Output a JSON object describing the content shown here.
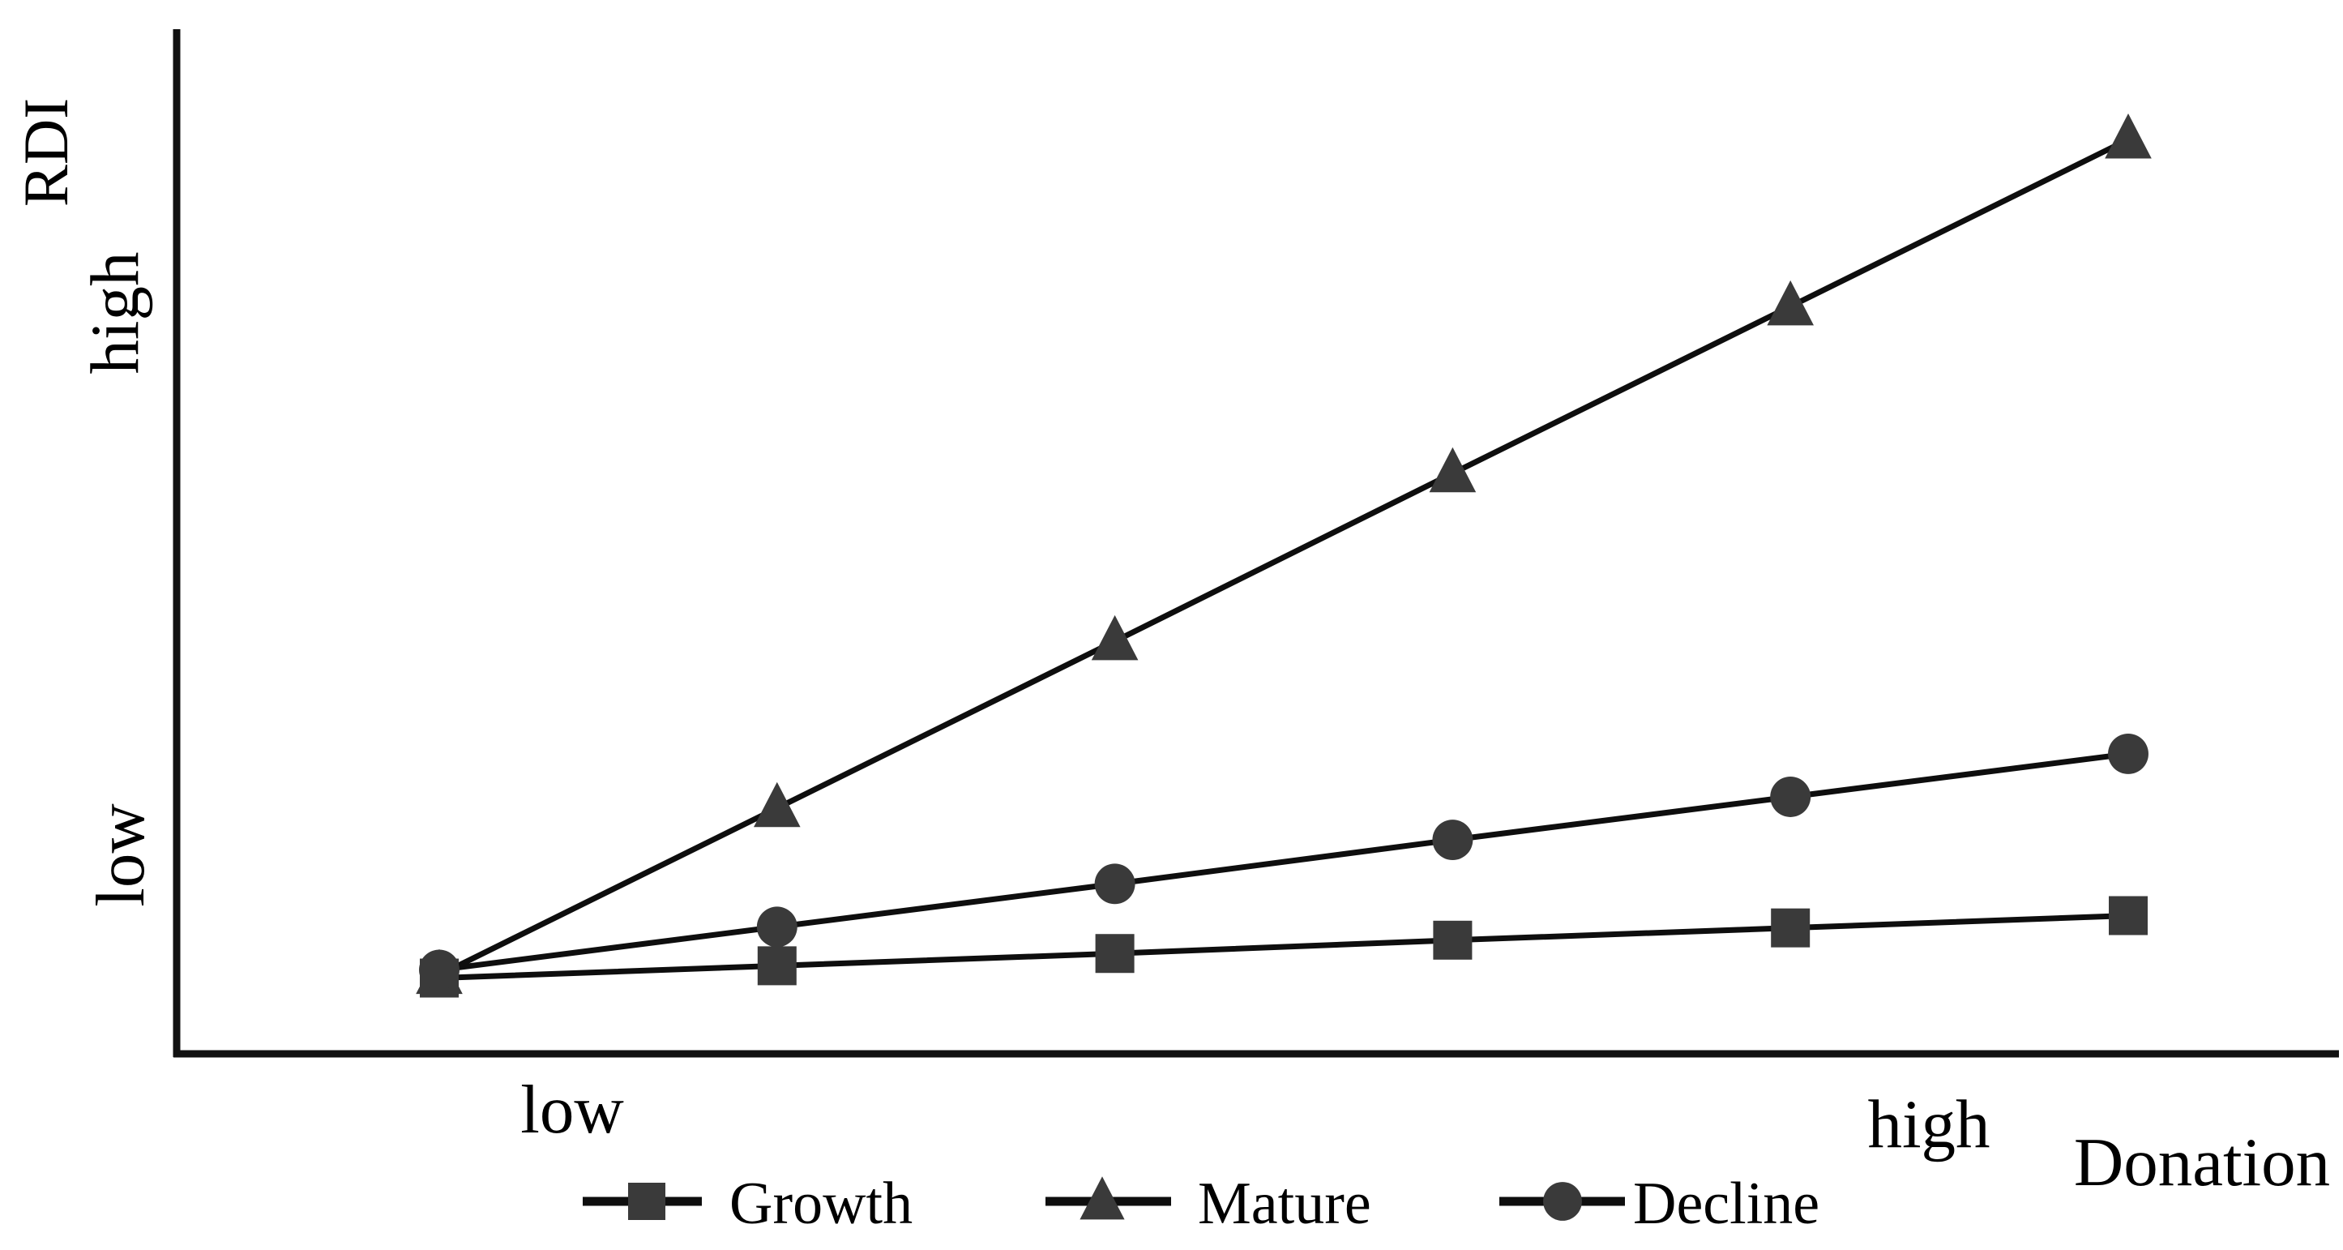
{
  "figure": {
    "background": "#ffffff",
    "text_color": "#000000",
    "line_color": "#0e0e0e",
    "axis_color": "#111111",
    "marker_color": "#3a3a3a"
  },
  "chart_data": {
    "type": "line",
    "title": "",
    "xlabel": "Donation",
    "ylabel": "RDI",
    "x_axis_ticks": [
      "low",
      "high"
    ],
    "y_axis_ticks": [
      "low",
      "high"
    ],
    "x": [
      1,
      2,
      3,
      4,
      5,
      6
    ],
    "series": [
      {
        "name": "Growth",
        "marker": "square",
        "values": [
          7.4,
          8.6,
          9.8,
          11.1,
          12.3,
          13.5
        ]
      },
      {
        "name": "Mature",
        "marker": "triangle",
        "values": [
          7.7,
          24.0,
          40.3,
          56.7,
          73.0,
          89.3
        ]
      },
      {
        "name": "Decline",
        "marker": "circle",
        "values": [
          8.2,
          12.4,
          16.6,
          20.9,
          25.1,
          29.3
        ]
      }
    ],
    "ylim": [
      0,
      100
    ],
    "grid": false,
    "legend_position": "bottom"
  },
  "legend": {
    "items": [
      {
        "label": "Growth",
        "marker": "square"
      },
      {
        "label": "Mature",
        "marker": "triangle"
      },
      {
        "label": "Decline",
        "marker": "circle"
      }
    ]
  }
}
